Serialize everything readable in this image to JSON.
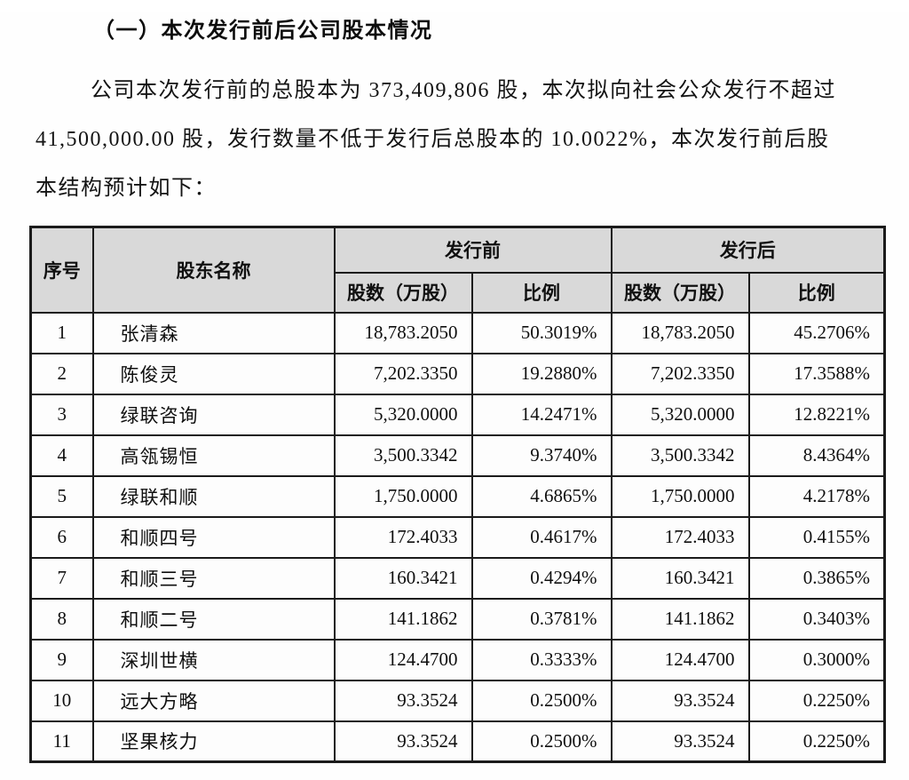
{
  "heading": "（一）本次发行前后公司股本情况",
  "paragraph_lines": [
    "公司本次发行前的总股本为 373,409,806 股，本次拟向社会公众发行不超过",
    "41,500,000.00 股，发行数量不低于发行后总股本的 10.0022%，本次发行前后股",
    "本结构预计如下："
  ],
  "colors": {
    "header_background": "#d9d9d9",
    "border": "#1b1b1b",
    "text": "#111111"
  },
  "table": {
    "headers": {
      "col_index": "序号",
      "col_name": "股东名称",
      "group_before": "发行前",
      "group_after": "发行后",
      "col_shares": "股数（万股）",
      "col_ratio": "比例"
    },
    "rows": [
      {
        "no": "1",
        "name": "张清森",
        "pre_shares": "18,783.2050",
        "pre_ratio": "50.3019%",
        "post_shares": "18,783.2050",
        "post_ratio": "45.2706%"
      },
      {
        "no": "2",
        "name": "陈俊灵",
        "pre_shares": "7,202.3350",
        "pre_ratio": "19.2880%",
        "post_shares": "7,202.3350",
        "post_ratio": "17.3588%"
      },
      {
        "no": "3",
        "name": "绿联咨询",
        "pre_shares": "5,320.0000",
        "pre_ratio": "14.2471%",
        "post_shares": "5,320.0000",
        "post_ratio": "12.8221%"
      },
      {
        "no": "4",
        "name": "高瓴锡恒",
        "pre_shares": "3,500.3342",
        "pre_ratio": "9.3740%",
        "post_shares": "3,500.3342",
        "post_ratio": "8.4364%"
      },
      {
        "no": "5",
        "name": "绿联和顺",
        "pre_shares": "1,750.0000",
        "pre_ratio": "4.6865%",
        "post_shares": "1,750.0000",
        "post_ratio": "4.2178%"
      },
      {
        "no": "6",
        "name": "和顺四号",
        "pre_shares": "172.4033",
        "pre_ratio": "0.4617%",
        "post_shares": "172.4033",
        "post_ratio": "0.4155%"
      },
      {
        "no": "7",
        "name": "和顺三号",
        "pre_shares": "160.3421",
        "pre_ratio": "0.4294%",
        "post_shares": "160.3421",
        "post_ratio": "0.3865%"
      },
      {
        "no": "8",
        "name": "和顺二号",
        "pre_shares": "141.1862",
        "pre_ratio": "0.3781%",
        "post_shares": "141.1862",
        "post_ratio": "0.3403%"
      },
      {
        "no": "9",
        "name": "深圳世横",
        "pre_shares": "124.4700",
        "pre_ratio": "0.3333%",
        "post_shares": "124.4700",
        "post_ratio": "0.3000%"
      },
      {
        "no": "10",
        "name": "远大方略",
        "pre_shares": "93.3524",
        "pre_ratio": "0.2500%",
        "post_shares": "93.3524",
        "post_ratio": "0.2250%"
      },
      {
        "no": "11",
        "name": "坚果核力",
        "pre_shares": "93.3524",
        "pre_ratio": "0.2500%",
        "post_shares": "93.3524",
        "post_ratio": "0.2250%"
      }
    ]
  }
}
